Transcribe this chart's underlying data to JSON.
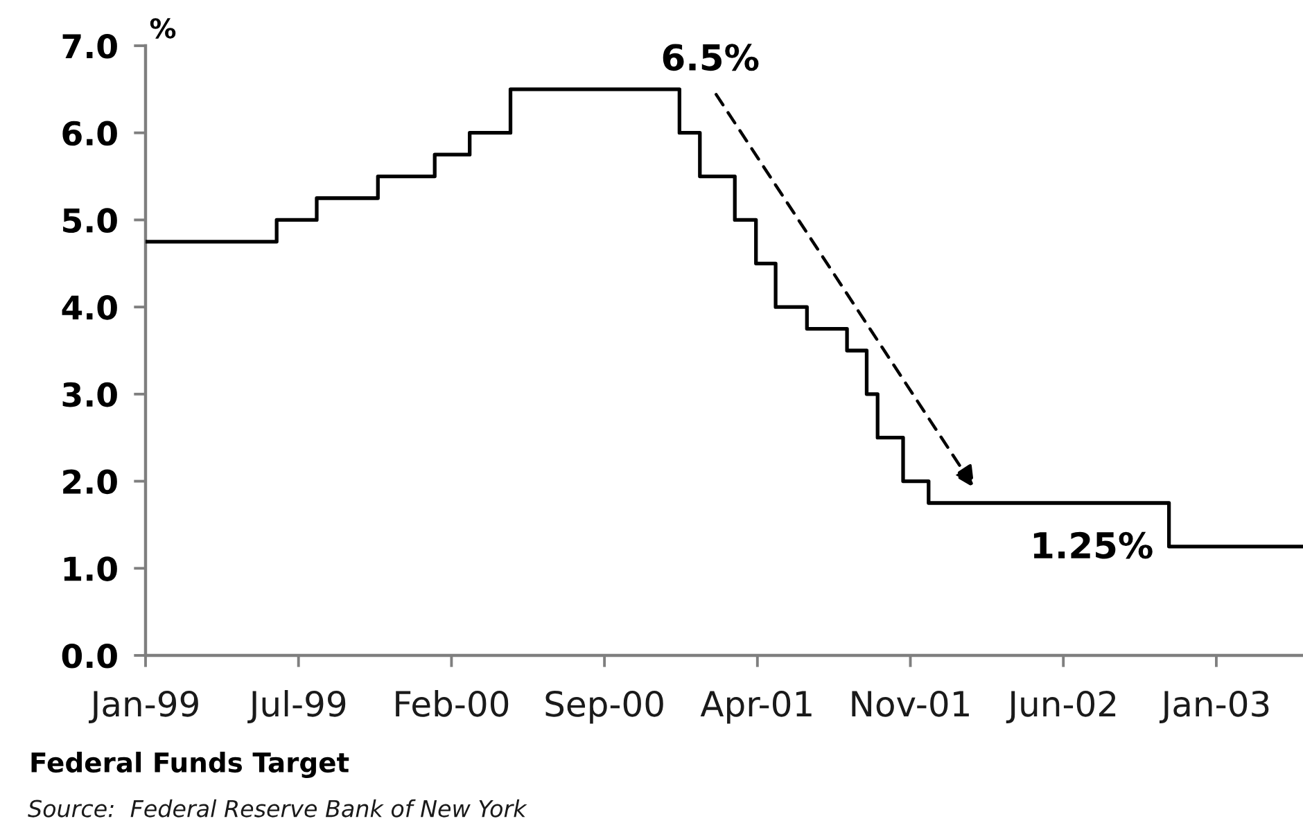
{
  "chart_data": {
    "type": "step",
    "title": "Federal Funds Target",
    "ylabel": "%",
    "x": [
      "1999-01-01",
      "1999-06-30",
      "1999-08-24",
      "1999-11-16",
      "2000-02-02",
      "2000-03-21",
      "2000-05-16",
      "2001-01-03",
      "2001-01-31",
      "2001-03-20",
      "2001-04-18",
      "2001-05-15",
      "2001-06-27",
      "2001-08-21",
      "2001-09-17",
      "2001-10-02",
      "2001-11-06",
      "2001-12-11",
      "2002-11-06",
      "2003-05-09"
    ],
    "series": [
      {
        "color": "#000000",
        "values": [
          4.75,
          5.0,
          5.25,
          5.5,
          5.75,
          6.0,
          6.5,
          6.0,
          5.5,
          5.0,
          4.5,
          4.0,
          3.75,
          3.5,
          3.0,
          2.5,
          2.0,
          1.75,
          1.25,
          1.25
        ]
      }
    ],
    "xlim": [
      "1999-01-01",
      "2003-05-09"
    ],
    "xticks": [
      {
        "value": "1999-01-01",
        "label": "Jan-99"
      },
      {
        "value": "1999-07-30",
        "label": "Jul-99"
      },
      {
        "value": "2000-02-25",
        "label": "Feb-00"
      },
      {
        "value": "2000-09-22",
        "label": "Sep-00"
      },
      {
        "value": "2001-04-20",
        "label": "Apr-01"
      },
      {
        "value": "2001-11-16",
        "label": "Nov-01"
      },
      {
        "value": "2002-06-14",
        "label": "Jun-02"
      },
      {
        "value": "2003-01-10",
        "label": "Jan-03"
      }
    ],
    "ylim": [
      0,
      7
    ],
    "yticks": [
      {
        "value": 0,
        "label": "0.0"
      },
      {
        "value": 1,
        "label": "1.0"
      },
      {
        "value": 2,
        "label": "2.0"
      },
      {
        "value": 3,
        "label": "3.0"
      },
      {
        "value": 4,
        "label": "4.0"
      },
      {
        "value": 5,
        "label": "5.0"
      },
      {
        "value": 6,
        "label": "6.0"
      },
      {
        "value": 7,
        "label": "7.0"
      }
    ],
    "annotations": [
      {
        "text": "6.5%",
        "x": "2001-01-03",
        "y": 6.5
      },
      {
        "text": "1.25%",
        "x": "2002-11-06",
        "y": 1.25
      },
      "Source:  Federal Reserve Bank of New York"
    ],
    "grid": false,
    "marker": "none",
    "line_style": "solid"
  }
}
